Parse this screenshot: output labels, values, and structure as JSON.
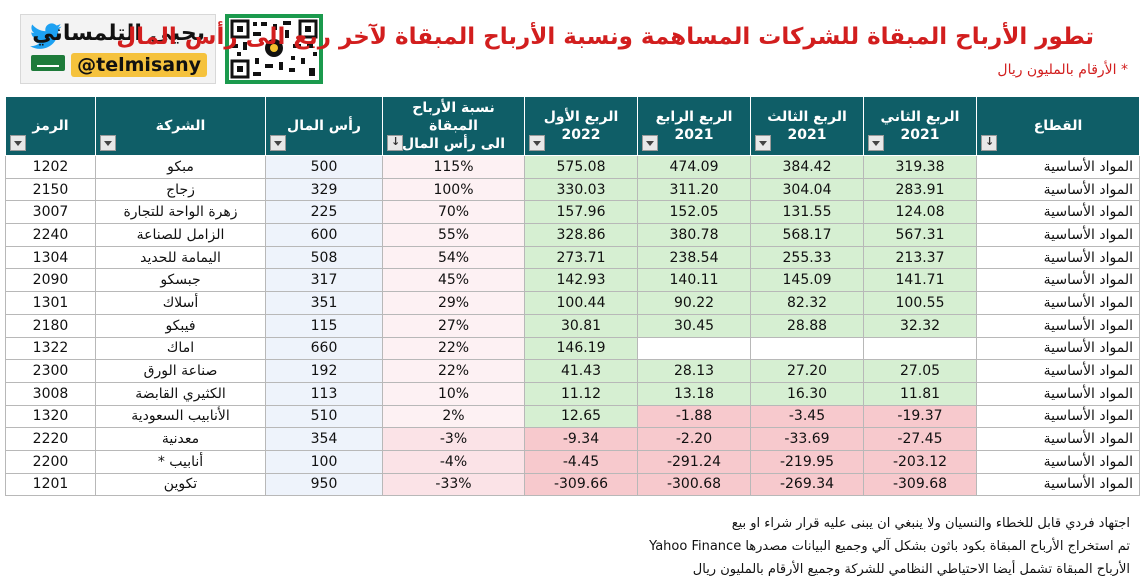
{
  "header": {
    "title": "تطور الأرباح المبقاة للشركات المساهمة ونسبة الأرباح المبقاة لآخر ربع الى رأس المال",
    "subtitle": "* الأرقام بالمليون ريال",
    "logo_name": "يحيى التلمساني",
    "logo_handle": "@telmisany",
    "logo_icon": "twitter-bird-icon",
    "qr_icon": "qr-code-icon"
  },
  "table": {
    "headers": {
      "sector": "القطاع",
      "q2_2021_line1": "الربع الثاني",
      "q2_2021_line2": "2021",
      "q3_2021_line1": "الربع الثالث",
      "q3_2021_line2": "2021",
      "q4_2021_line1": "الربع الرابع",
      "q4_2021_line2": "2021",
      "q1_2022_line1": "الربع الأول",
      "q1_2022_line2": "2022",
      "ratio_line1": "نسبة الأرباح المبقاة",
      "ratio_line2": "الى رأس المال",
      "capital": "رأس المال",
      "company": "الشركة",
      "code": "الرمز"
    },
    "rows": [
      {
        "sector": "المواد الأساسية",
        "q2": "319.38",
        "q3": "384.42",
        "q4": "474.09",
        "q1": "575.08",
        "ratio": "115%",
        "capital": "500",
        "company": "مبكو",
        "code": "1202"
      },
      {
        "sector": "المواد الأساسية",
        "q2": "283.91",
        "q3": "304.04",
        "q4": "311.20",
        "q1": "330.03",
        "ratio": "100%",
        "capital": "329",
        "company": "زجاج",
        "code": "2150"
      },
      {
        "sector": "المواد الأساسية",
        "q2": "124.08",
        "q3": "131.55",
        "q4": "152.05",
        "q1": "157.96",
        "ratio": "70%",
        "capital": "225",
        "company": "زهرة الواحة للتجارة",
        "code": "3007"
      },
      {
        "sector": "المواد الأساسية",
        "q2": "567.31",
        "q3": "568.17",
        "q4": "380.78",
        "q1": "328.86",
        "ratio": "55%",
        "capital": "600",
        "company": "الزامل للصناعة",
        "code": "2240"
      },
      {
        "sector": "المواد الأساسية",
        "q2": "213.37",
        "q3": "255.33",
        "q4": "238.54",
        "q1": "273.71",
        "ratio": "54%",
        "capital": "508",
        "company": "اليمامة للحديد",
        "code": "1304"
      },
      {
        "sector": "المواد الأساسية",
        "q2": "141.71",
        "q3": "145.09",
        "q4": "140.11",
        "q1": "142.93",
        "ratio": "45%",
        "capital": "317",
        "company": "جبسكو",
        "code": "2090"
      },
      {
        "sector": "المواد الأساسية",
        "q2": "100.55",
        "q3": "82.32",
        "q4": "90.22",
        "q1": "100.44",
        "ratio": "29%",
        "capital": "351",
        "company": "أسلاك",
        "code": "1301"
      },
      {
        "sector": "المواد الأساسية",
        "q2": "32.32",
        "q3": "28.88",
        "q4": "30.45",
        "q1": "30.81",
        "ratio": "27%",
        "capital": "115",
        "company": "فيبكو",
        "code": "2180"
      },
      {
        "sector": "المواد الأساسية",
        "q2": "",
        "q3": "",
        "q4": "",
        "q1": "146.19",
        "ratio": "22%",
        "capital": "660",
        "company": "اماك",
        "code": "1322"
      },
      {
        "sector": "المواد الأساسية",
        "q2": "27.05",
        "q3": "27.20",
        "q4": "28.13",
        "q1": "41.43",
        "ratio": "22%",
        "capital": "192",
        "company": "صناعة الورق",
        "code": "2300"
      },
      {
        "sector": "المواد الأساسية",
        "q2": "11.81",
        "q3": "16.30",
        "q4": "13.18",
        "q1": "11.12",
        "ratio": "10%",
        "capital": "113",
        "company": "الكثيري القابضة",
        "code": "3008"
      },
      {
        "sector": "المواد الأساسية",
        "q2": "-19.37",
        "q3": "-3.45",
        "q4": "-1.88",
        "q1": "12.65",
        "ratio": "2%",
        "capital": "510",
        "company": "الأنابيب السعودية",
        "code": "1320"
      },
      {
        "sector": "المواد الأساسية",
        "q2": "-27.45",
        "q3": "-33.69",
        "q4": "-2.20",
        "q1": "-9.34",
        "ratio": "-3%",
        "capital": "354",
        "company": "معدنية",
        "code": "2220"
      },
      {
        "sector": "المواد الأساسية",
        "q2": "-203.12",
        "q3": "-219.95",
        "q4": "-291.24",
        "q1": "-4.45",
        "ratio": "-4%",
        "capital": "100",
        "company": "أنابيب *",
        "code": "2200"
      },
      {
        "sector": "المواد الأساسية",
        "q2": "-309.68",
        "q3": "-269.34",
        "q4": "-300.68",
        "q1": "-309.66",
        "ratio": "-33%",
        "capital": "950",
        "company": "تكوين",
        "code": "1201"
      }
    ]
  },
  "footer": {
    "line1": "اجتهاد فردي قابل للخطاء والنسيان ولا ينبغي ان يبنى عليه قرار شراء او بيع",
    "line2": "تم استخراج الأرباح المبقاة بكود باثون بشكل آلي وجميع البيانات مصدرها Yahoo Finance",
    "line3": "الأرباح المبقاة تشمل أيضا الاحتياطي النظامي للشركة وجميع الأرقام بالمليون ريال"
  }
}
